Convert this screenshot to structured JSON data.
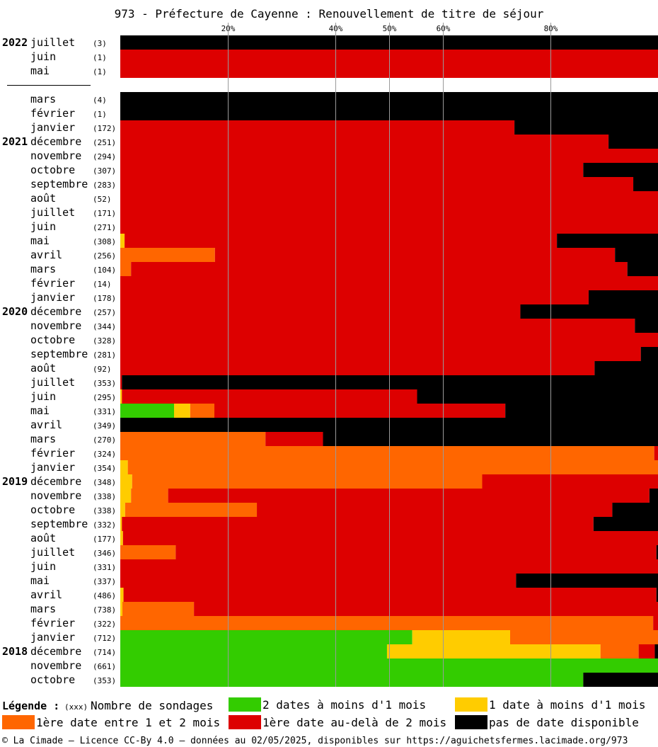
{
  "chart_data": {
    "type": "bar",
    "title": "973 - Préfecture de Cayenne : Renouvellement de titre de séjour",
    "x_axis_ticks": [
      "20%",
      "40%",
      "50%",
      "60%",
      "80%"
    ],
    "tick_values": [
      20,
      40,
      50,
      60,
      80
    ],
    "xlim": [
      0,
      100
    ],
    "stacked": true,
    "orientation": "horizontal",
    "grid": true,
    "legend_position": "bottom",
    "series": [
      {
        "key": "green",
        "name": "2 dates à moins d'1 mois",
        "color": "#33cc00"
      },
      {
        "key": "yellow",
        "name": "1 date à moins d'1 mois",
        "color": "#ffcc00"
      },
      {
        "key": "orange",
        "name": "1ère date entre 1 et 2 mois",
        "color": "#ff6600"
      },
      {
        "key": "red",
        "name": "1ère date au-delà de 2 mois",
        "color": "#dd0000"
      },
      {
        "key": "black",
        "name": "pas de date disponible",
        "color": "#000000"
      }
    ],
    "rows": [
      {
        "year": "2022",
        "month": "juillet",
        "count": "(3)",
        "green": 0,
        "yellow": 0,
        "orange": 0,
        "red": 0,
        "black": 100
      },
      {
        "year": "",
        "month": "juin",
        "count": "(1)",
        "green": 0,
        "yellow": 0,
        "orange": 0,
        "red": 100,
        "black": 0
      },
      {
        "year": "",
        "month": "mai",
        "count": "(1)",
        "green": 0,
        "yellow": 0,
        "orange": 0,
        "red": 100,
        "black": 0
      },
      {
        "gap": true
      },
      {
        "year": "",
        "month": "mars",
        "count": "(4)",
        "green": 0,
        "yellow": 0,
        "orange": 0,
        "red": 0,
        "black": 100
      },
      {
        "year": "",
        "month": "février",
        "count": "(1)",
        "green": 0,
        "yellow": 0,
        "orange": 0,
        "red": 0,
        "black": 100
      },
      {
        "year": "",
        "month": "janvier",
        "count": "(172)",
        "green": 0,
        "yellow": 0,
        "orange": 0,
        "red": 73.3,
        "black": 26.7
      },
      {
        "year": "2021",
        "month": "décembre",
        "count": "(251)",
        "green": 0,
        "yellow": 0,
        "orange": 0,
        "red": 90.8,
        "black": 9.2
      },
      {
        "year": "",
        "month": "novembre",
        "count": "(294)",
        "green": 0,
        "yellow": 0,
        "orange": 0,
        "red": 100,
        "black": 0
      },
      {
        "year": "",
        "month": "octobre",
        "count": "(307)",
        "green": 0,
        "yellow": 0,
        "orange": 0,
        "red": 86.1,
        "black": 13.9
      },
      {
        "year": "",
        "month": "septembre",
        "count": "(283)",
        "green": 0,
        "yellow": 0,
        "orange": 0,
        "red": 95.4,
        "black": 4.6
      },
      {
        "year": "",
        "month": "août",
        "count": "(52)",
        "green": 0,
        "yellow": 0,
        "orange": 0,
        "red": 100,
        "black": 0
      },
      {
        "year": "",
        "month": "juillet",
        "count": "(171)",
        "green": 0,
        "yellow": 0,
        "orange": 0,
        "red": 100,
        "black": 0
      },
      {
        "year": "",
        "month": "juin",
        "count": "(271)",
        "green": 0,
        "yellow": 0,
        "orange": 0,
        "red": 100,
        "black": 0
      },
      {
        "year": "",
        "month": "mai",
        "count": "(308)",
        "green": 0,
        "yellow": 0.8,
        "orange": 0,
        "red": 80.4,
        "black": 18.8
      },
      {
        "year": "",
        "month": "avril",
        "count": "(256)",
        "green": 0,
        "yellow": 0,
        "orange": 17.6,
        "red": 74.4,
        "black": 8
      },
      {
        "year": "",
        "month": "mars",
        "count": "(104)",
        "green": 0,
        "yellow": 0,
        "orange": 2,
        "red": 92.3,
        "black": 5.7
      },
      {
        "year": "",
        "month": "février",
        "count": "(14)",
        "green": 0,
        "yellow": 0,
        "orange": 0,
        "red": 100,
        "black": 0
      },
      {
        "year": "",
        "month": "janvier",
        "count": "(178)",
        "green": 0,
        "yellow": 0,
        "orange": 0,
        "red": 87.1,
        "black": 12.9
      },
      {
        "year": "2020",
        "month": "décembre",
        "count": "(257)",
        "green": 0,
        "yellow": 0,
        "orange": 0,
        "red": 74.4,
        "black": 25.6
      },
      {
        "year": "",
        "month": "novembre",
        "count": "(344)",
        "green": 0,
        "yellow": 0,
        "orange": 0,
        "red": 95.7,
        "black": 4.3
      },
      {
        "year": "",
        "month": "octobre",
        "count": "(328)",
        "green": 0,
        "yellow": 0,
        "orange": 0,
        "red": 100,
        "black": 0
      },
      {
        "year": "",
        "month": "septembre",
        "count": "(281)",
        "green": 0,
        "yellow": 0,
        "orange": 0,
        "red": 96.8,
        "black": 3.2
      },
      {
        "year": "",
        "month": "août",
        "count": "(92)",
        "green": 0,
        "yellow": 0,
        "orange": 0,
        "red": 88.2,
        "black": 11.8
      },
      {
        "year": "",
        "month": "juillet",
        "count": "(353)",
        "green": 0,
        "yellow": 0,
        "orange": 0,
        "red": 0.3,
        "black": 99.7
      },
      {
        "year": "",
        "month": "juin",
        "count": "(295)",
        "green": 0,
        "yellow": 0.3,
        "orange": 0,
        "red": 54.9,
        "black": 44.8
      },
      {
        "year": "",
        "month": "mai",
        "count": "(331)",
        "green": 10,
        "yellow": 3,
        "orange": 4.5,
        "red": 54.1,
        "black": 28.4
      },
      {
        "year": "",
        "month": "avril",
        "count": "(349)",
        "green": 0,
        "yellow": 0,
        "orange": 0,
        "red": 0,
        "black": 100
      },
      {
        "year": "",
        "month": "mars",
        "count": "(270)",
        "green": 0,
        "yellow": 0,
        "orange": 27,
        "red": 10.7,
        "black": 62.3
      },
      {
        "year": "",
        "month": "février",
        "count": "(324)",
        "green": 0,
        "yellow": 0,
        "orange": 99.3,
        "red": 0.7,
        "black": 0
      },
      {
        "year": "",
        "month": "janvier",
        "count": "(354)",
        "green": 0,
        "yellow": 1.4,
        "orange": 98.6,
        "red": 0,
        "black": 0
      },
      {
        "year": "2019",
        "month": "décembre",
        "count": "(348)",
        "green": 0,
        "yellow": 2.2,
        "orange": 65.1,
        "red": 32.7,
        "black": 0
      },
      {
        "year": "",
        "month": "novembre",
        "count": "(338)",
        "green": 0,
        "yellow": 2,
        "orange": 6.9,
        "red": 89.5,
        "black": 1.6
      },
      {
        "year": "",
        "month": "octobre",
        "count": "(338)",
        "green": 0,
        "yellow": 0.9,
        "orange": 24.5,
        "red": 66.1,
        "black": 8.5
      },
      {
        "year": "",
        "month": "septembre",
        "count": "(332)",
        "green": 0,
        "yellow": 0.3,
        "orange": 0,
        "red": 87.7,
        "black": 12
      },
      {
        "year": "",
        "month": "août",
        "count": "(177)",
        "green": 0,
        "yellow": 0.5,
        "orange": 0,
        "red": 99.5,
        "black": 0
      },
      {
        "year": "",
        "month": "juillet",
        "count": "(346)",
        "green": 0,
        "yellow": 0,
        "orange": 10.3,
        "red": 89.4,
        "black": 0.3
      },
      {
        "year": "",
        "month": "juin",
        "count": "(331)",
        "green": 0,
        "yellow": 0,
        "orange": 0,
        "red": 100,
        "black": 0
      },
      {
        "year": "",
        "month": "mai",
        "count": "(337)",
        "green": 0,
        "yellow": 0,
        "orange": 0,
        "red": 73.6,
        "black": 26.4
      },
      {
        "year": "",
        "month": "avril",
        "count": "(486)",
        "green": 0,
        "yellow": 0.6,
        "orange": 0,
        "red": 99.1,
        "black": 0.3
      },
      {
        "year": "",
        "month": "mars",
        "count": "(738)",
        "green": 0,
        "yellow": 0.4,
        "orange": 13.3,
        "red": 86.3,
        "black": 0
      },
      {
        "year": "",
        "month": "février",
        "count": "(322)",
        "green": 0,
        "yellow": 0,
        "orange": 99.1,
        "red": 0.9,
        "black": 0
      },
      {
        "year": "",
        "month": "janvier",
        "count": "(712)",
        "green": 54.3,
        "yellow": 18.2,
        "orange": 27.5,
        "red": 0,
        "black": 0
      },
      {
        "year": "2018",
        "month": "décembre",
        "count": "(714)",
        "green": 49.6,
        "yellow": 39.7,
        "orange": 7.1,
        "red": 3.0,
        "black": 0.6
      },
      {
        "year": "",
        "month": "novembre",
        "count": "(661)",
        "green": 100,
        "yellow": 0,
        "orange": 0,
        "red": 0,
        "black": 0
      },
      {
        "year": "",
        "month": "octobre",
        "count": "(353)",
        "green": 86.1,
        "yellow": 0,
        "orange": 0,
        "red": 0,
        "black": 13.9
      }
    ]
  },
  "legend": {
    "title": "Légende :",
    "count_label_code": "(xxx)",
    "count_label_text": "Nombre de sondages"
  },
  "footer": "© La Cimade — Licence CC-By 4.0 — données au 02/05/2025, disponibles sur https://aguichetsfermes.lacimade.org/973"
}
